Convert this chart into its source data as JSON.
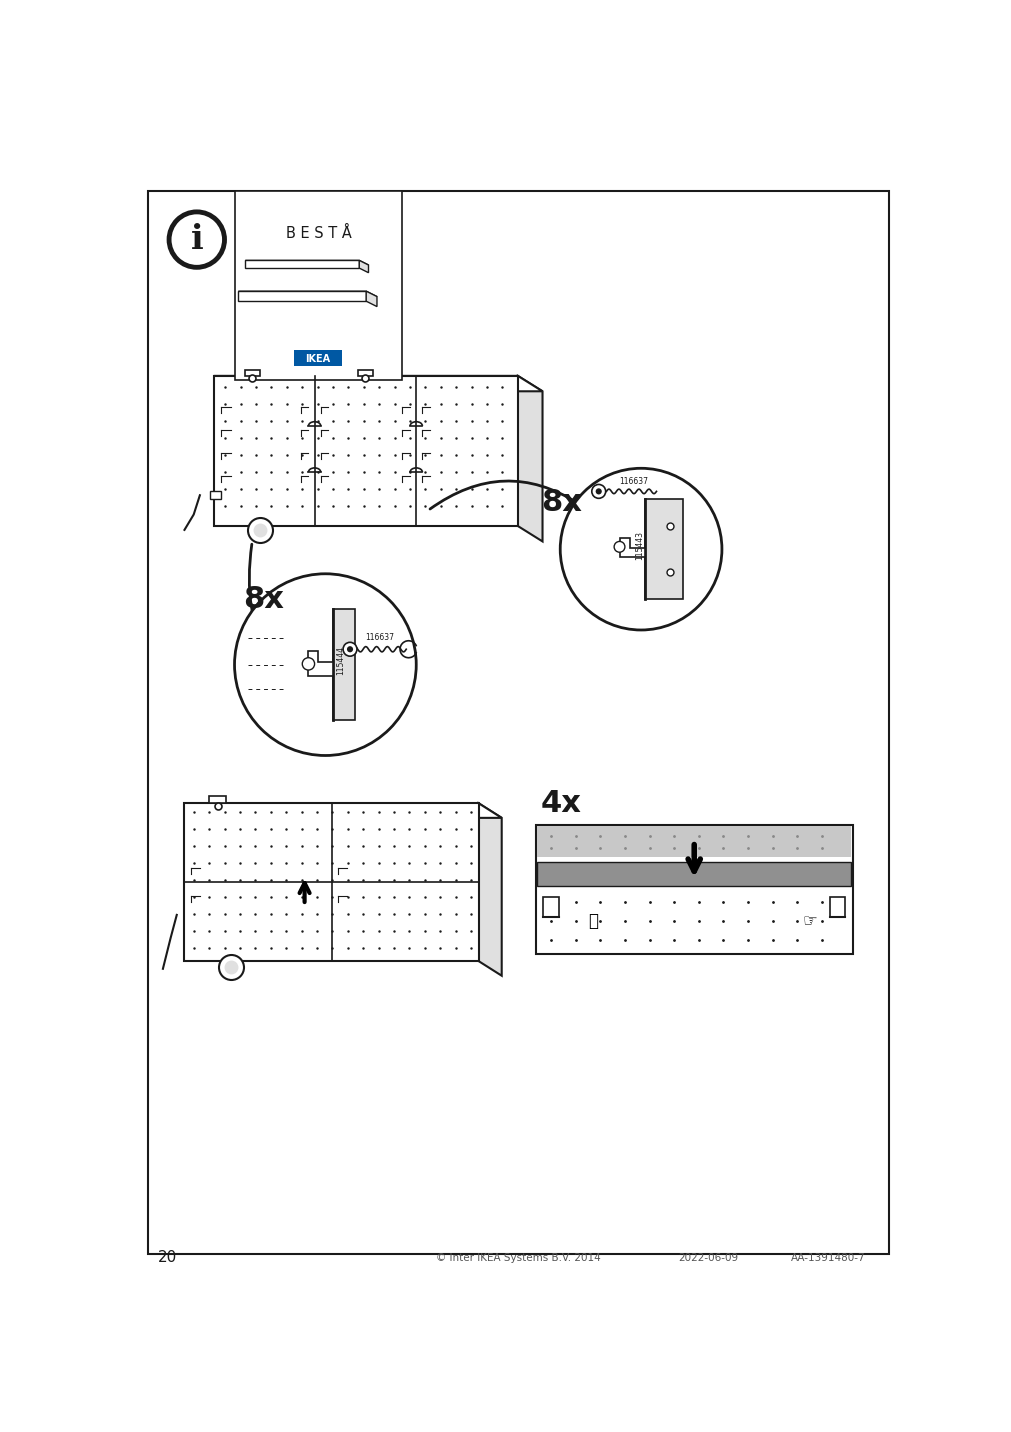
{
  "page_number": "20",
  "footer_copyright": "© Inter IKEA Systems B.V. 2014",
  "footer_date": "2022-06-09",
  "footer_code": "AA-1391480-7",
  "brand": "B E S T Å",
  "count_upper_right": "8x",
  "count_lower_left": "8x",
  "count_detail": "4x",
  "part_115444": "115444",
  "part_115443": "115443",
  "part_116637": "116637",
  "bg_color": "#ffffff",
  "line_color": "#1a1a1a",
  "light_gray": "#e0e0e0",
  "mid_gray": "#aaaaaa",
  "dark_gray": "#555555"
}
